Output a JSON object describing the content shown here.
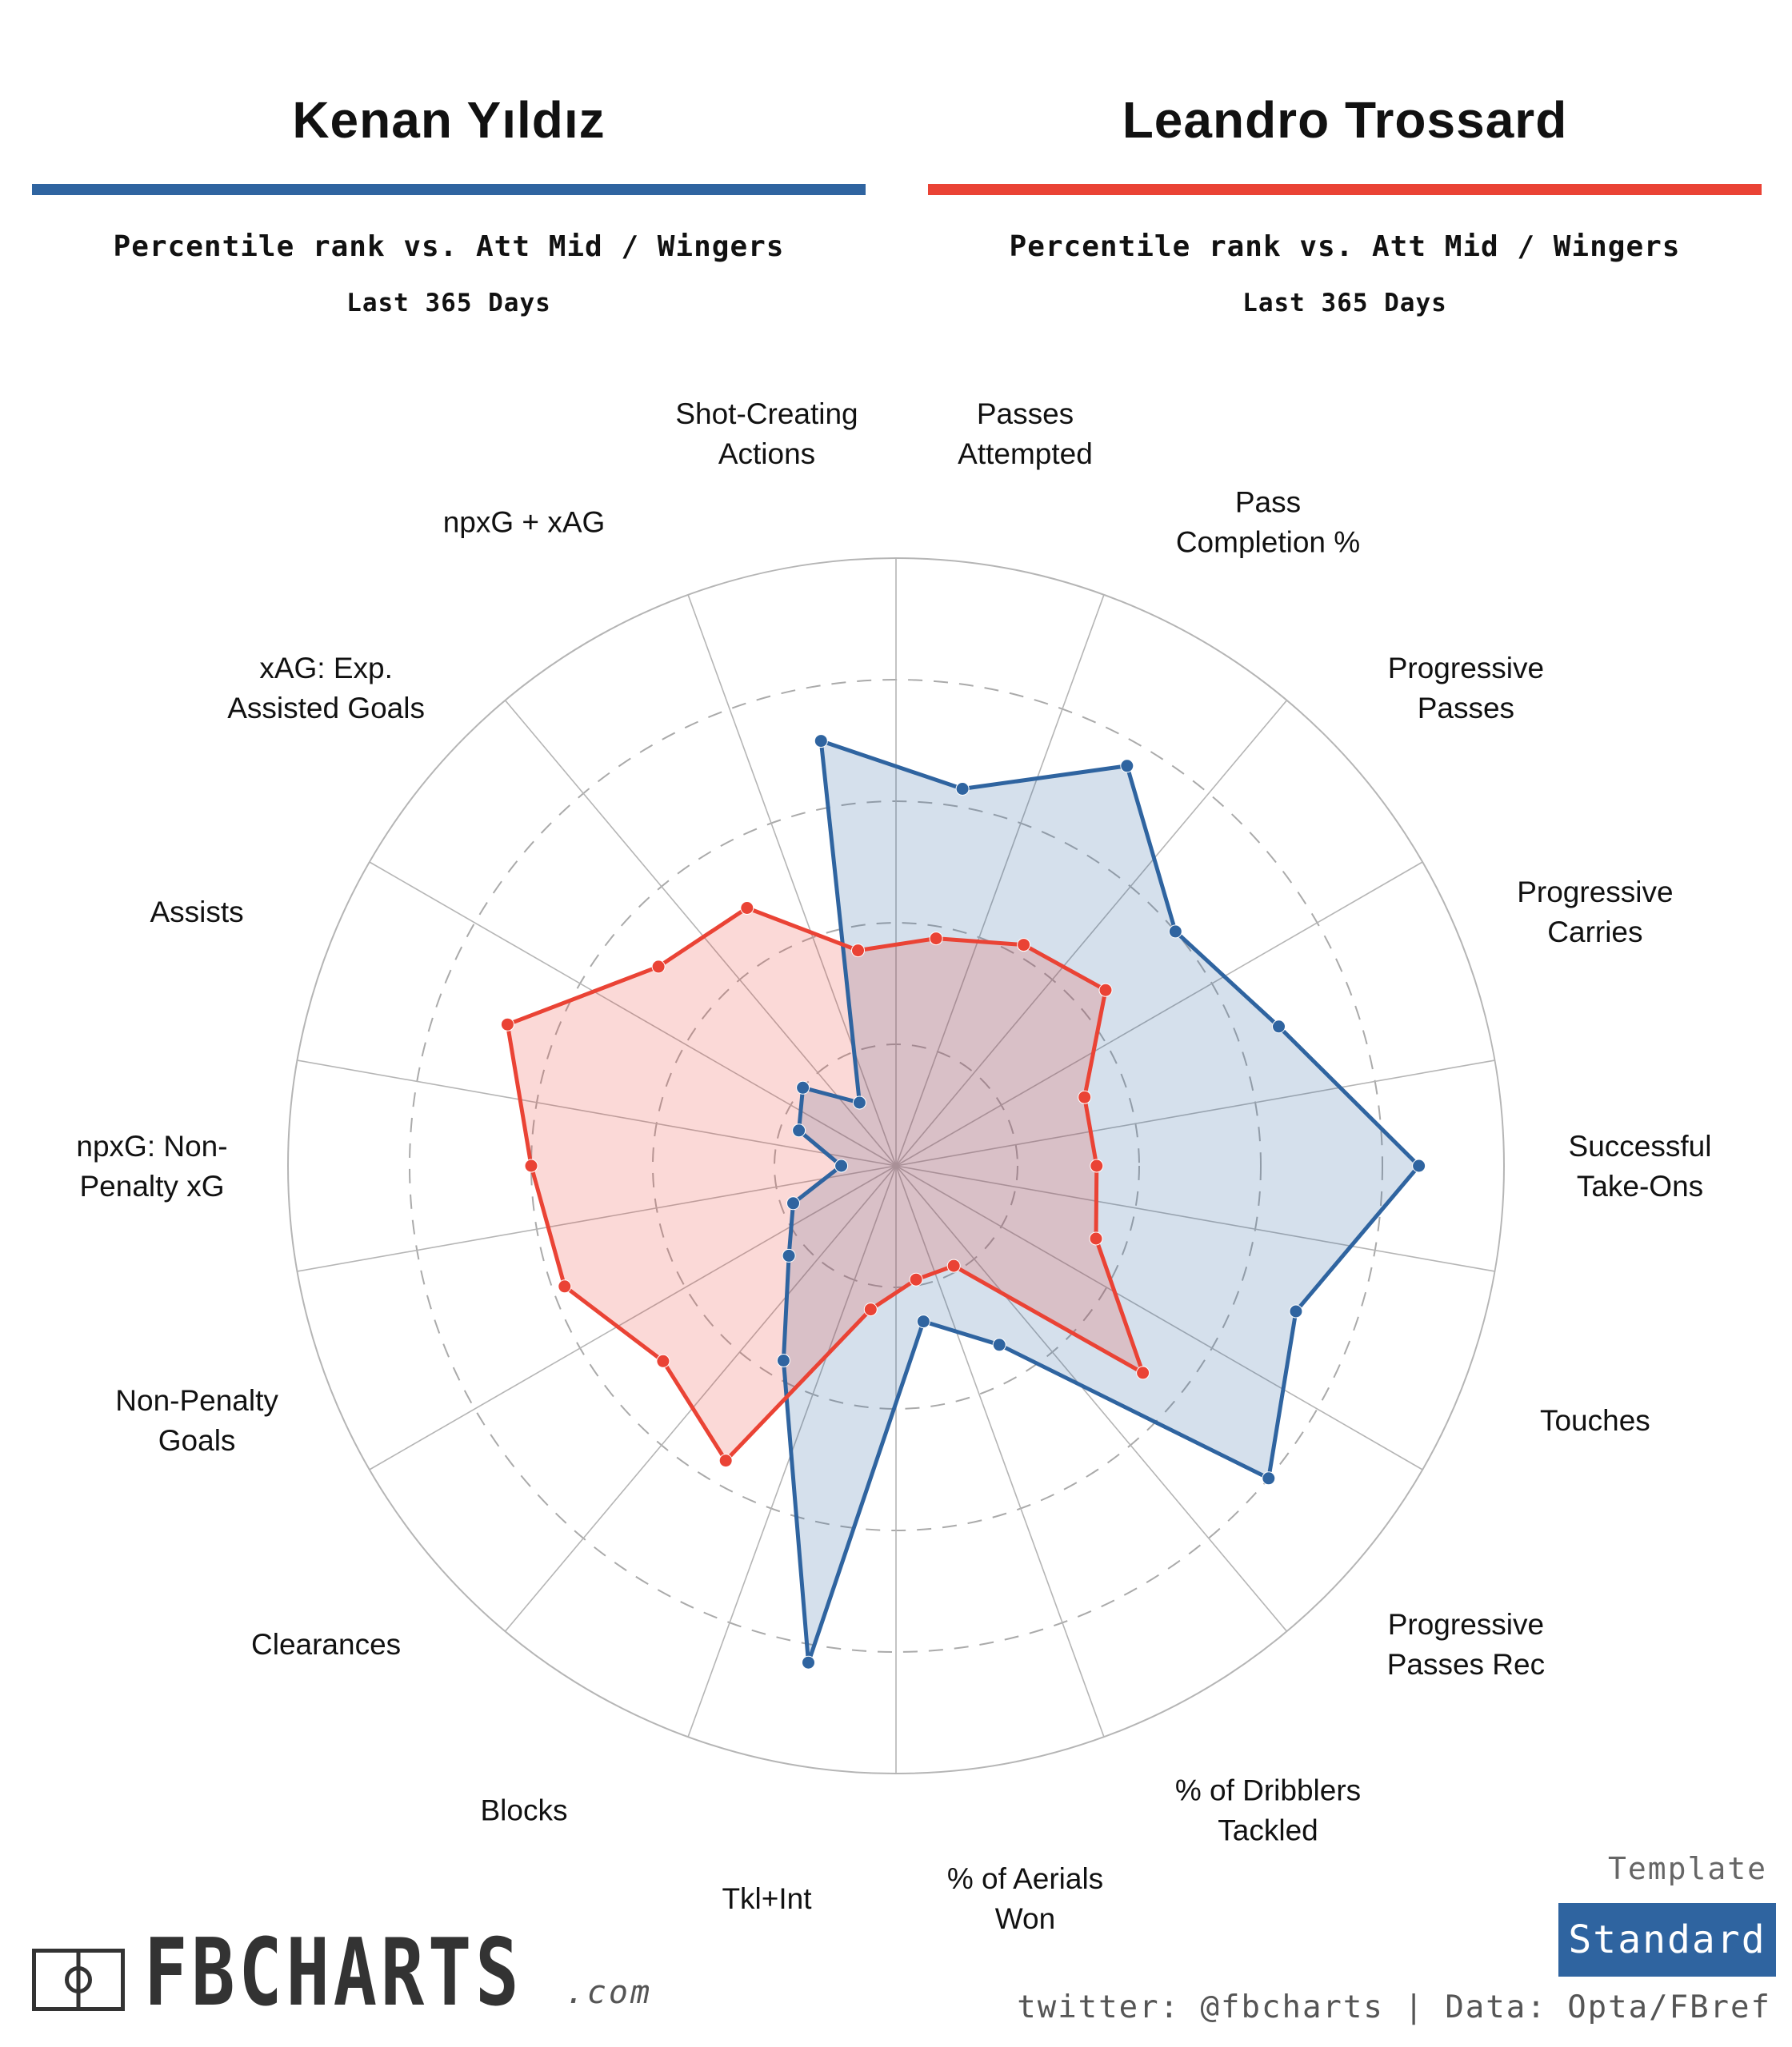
{
  "players": [
    {
      "name": "Kenan Yıldız",
      "color": "#2f64a0",
      "subtitle": "Percentile rank vs. Att Mid / Wingers",
      "period": "Last 365 Days"
    },
    {
      "name": "Leandro Trossard",
      "color": "#ea4335",
      "subtitle": "Percentile rank vs. Att Mid / Wingers",
      "period": "Last 365 Days"
    }
  ],
  "chart_data": {
    "type": "radar",
    "range": [
      0,
      100
    ],
    "grid": true,
    "categories": [
      "Passes Attempted",
      "Pass Completion %",
      "Progressive Passes",
      "Progressive Carries",
      "Successful Take-Ons",
      "Touches",
      "Progressive Passes Rec",
      "% of Dribblers Tackled",
      "% of Aerials Won",
      "Tkl+Int",
      "Blocks",
      "Clearances",
      "Non-Penalty Goals",
      "npxG: Non-Penalty xG",
      "Assists",
      "xAG: Exp. Assisted Goals",
      "npxG + xAG",
      "Shot-Creating Actions"
    ],
    "category_lines": [
      [
        "Passes",
        "Attempted"
      ],
      [
        "Pass",
        "Completion %"
      ],
      [
        "Progressive",
        "Passes"
      ],
      [
        "Progressive",
        "Carries"
      ],
      [
        "Successful",
        "Take-Ons"
      ],
      [
        "Touches"
      ],
      [
        "Progressive",
        "Passes Rec"
      ],
      [
        "% of Dribblers",
        "Tackled"
      ],
      [
        "% of Aerials",
        "Won"
      ],
      [
        "Tkl+Int"
      ],
      [
        "Blocks"
      ],
      [
        "Clearances"
      ],
      [
        "Non-Penalty",
        "Goals"
      ],
      [
        "npxG: Non-",
        "Penalty xG"
      ],
      [
        "Assists"
      ],
      [
        "xAG: Exp.",
        "Assisted Goals"
      ],
      [
        "npxG + xAG"
      ],
      [
        "Shot-Creating",
        "Actions"
      ]
    ],
    "series": [
      {
        "name": "Kenan Yıldız",
        "color": "#2f64a0",
        "values": [
          63,
          76,
          60,
          67,
          86,
          70,
          80,
          34,
          26,
          83,
          37,
          23,
          18,
          9,
          17,
          20,
          12,
          71
        ]
      },
      {
        "name": "Leandro Trossard",
        "color": "#ea4335",
        "values": [
          38,
          42,
          45,
          33,
          33,
          35,
          53,
          19,
          19,
          24,
          56,
          50,
          58,
          60,
          68,
          51,
          49,
          36
        ]
      }
    ]
  },
  "footer": {
    "logo_main": "FBCHARTS",
    "logo_suffix": ".com",
    "template_label": "Template",
    "template_value": "Standard",
    "credits": "twitter: @fbcharts | Data: Opta/FBref"
  }
}
